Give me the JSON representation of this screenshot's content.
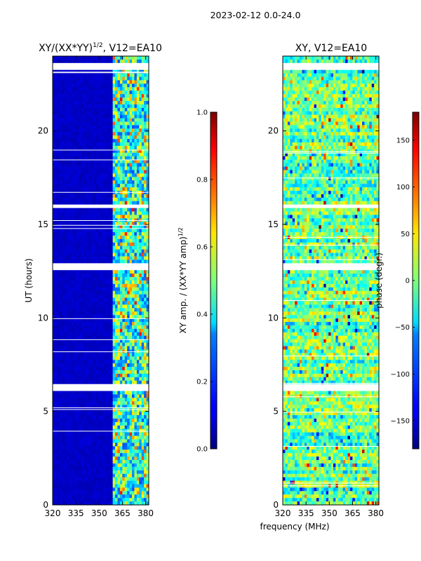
{
  "figure": {
    "suptitle": "2023-02-12 0.0-24.0",
    "xlabel_shared": "frequency (MHz)"
  },
  "chart_data": [
    {
      "type": "heatmap",
      "title": "XY/(XX*YY)",
      "title_exponent": "1/2",
      "title_suffix": ", V12=EA10",
      "xlabel": "",
      "ylabel": "UT (hours)",
      "xlim": [
        320,
        382
      ],
      "ylim": [
        0,
        24
      ],
      "xticks": [
        "320",
        "335",
        "350",
        "365",
        "380"
      ],
      "xtick_values": [
        320,
        335,
        350,
        365,
        380
      ],
      "yticks": [
        "0",
        "5",
        "10",
        "15",
        "20"
      ],
      "ytick_values": [
        0,
        5,
        10,
        15,
        20
      ],
      "colorbar": {
        "label": "XY amp. / (XX*YY amp)",
        "label_exponent": "1/2",
        "range": [
          0.0,
          1.0
        ],
        "ticks": [
          "0.0",
          "0.2",
          "0.4",
          "0.6",
          "0.8",
          "1.0"
        ],
        "tick_values": [
          0.0,
          0.2,
          0.4,
          0.6,
          0.8,
          1.0
        ],
        "colormap": "jet"
      },
      "description_values": {
        "low_band_mhz": [
          320,
          359
        ],
        "low_band_level": 0.05,
        "active_band_mhz": [
          359,
          382
        ],
        "active_band_level_range": [
          0.2,
          0.9
        ]
      },
      "flagged_hours": [
        12.65,
        12.8,
        6.2,
        6.35,
        15.9,
        16.05,
        23.4,
        23.5
      ]
    },
    {
      "type": "heatmap",
      "title": "XY, V12=EA10",
      "xlabel": "frequency (MHz)",
      "ylabel": "",
      "xlim": [
        320,
        382
      ],
      "ylim": [
        0,
        24
      ],
      "xticks": [
        "320",
        "335",
        "350",
        "365",
        "380"
      ],
      "xtick_values": [
        320,
        335,
        350,
        365,
        380
      ],
      "yticks": [
        "0",
        "5",
        "10",
        "15",
        "20"
      ],
      "ytick_values": [
        0,
        5,
        10,
        15,
        20
      ],
      "colorbar": {
        "label": "phase (degr.)",
        "range": [
          -180,
          180
        ],
        "ticks": [
          "−150",
          "−100",
          "−50",
          "0",
          "50",
          "100",
          "150"
        ],
        "tick_values": [
          -150,
          -100,
          -50,
          0,
          50,
          100,
          150
        ],
        "colormap": "jet"
      },
      "description_values": {
        "phase_range_deg": [
          -180,
          180
        ],
        "typical_phase_deg": [
          -60,
          40
        ]
      },
      "flagged_hours": [
        12.65,
        12.8,
        6.2,
        6.35,
        15.9,
        16.05,
        23.4,
        23.5
      ]
    }
  ]
}
